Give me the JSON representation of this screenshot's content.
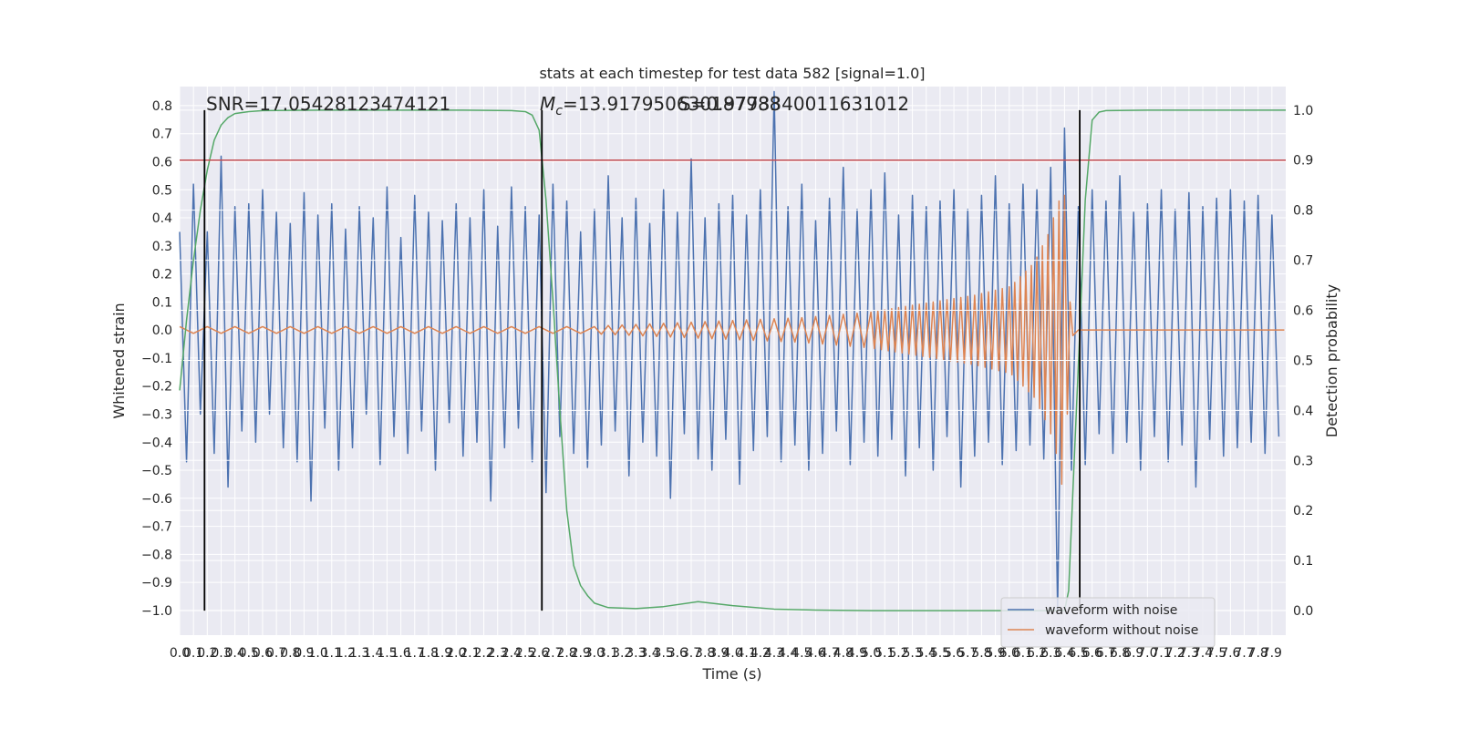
{
  "chart_data": {
    "type": "line",
    "title": "stats at each timestep for test data 582 [signal=1.0]",
    "xlabel": "Time (s)",
    "ylabel": "Whitened strain",
    "y2label": "Detection probability",
    "xlim": [
      0,
      8
    ],
    "ylim": [
      -1.088,
      0.868
    ],
    "y2lim": [
      -0.049,
      1.047
    ],
    "grid": true,
    "legend": "lower right",
    "xticks": [
      {
        "value": 0,
        "label": "0.0"
      },
      0.1,
      0.2,
      0.3,
      0.4,
      0.5,
      0.6,
      0.7,
      0.8,
      0.9,
      {
        "value": 1,
        "label": "1.0"
      },
      1.1,
      1.2,
      1.3,
      1.4,
      1.5,
      1.6,
      1.7,
      1.8,
      1.9,
      {
        "value": 2,
        "label": "2.0"
      },
      2.1,
      2.2,
      2.3,
      2.4,
      2.5,
      2.6,
      2.7,
      2.8,
      2.9,
      {
        "value": 3,
        "label": "3.0"
      },
      3.1,
      3.2,
      3.3,
      3.4,
      3.5,
      3.6,
      3.7,
      3.8,
      3.9,
      {
        "value": 4,
        "label": "4.0"
      },
      4.1,
      4.2,
      4.3,
      4.4,
      4.5,
      4.6,
      4.7,
      4.8,
      4.9,
      {
        "value": 5,
        "label": "5.0"
      },
      5.1,
      5.2,
      5.3,
      5.4,
      5.5,
      5.6,
      5.7,
      5.8,
      5.9,
      {
        "value": 6,
        "label": "6.0"
      },
      6.1,
      6.2,
      6.3,
      6.4,
      6.5,
      6.6,
      6.7,
      6.8,
      6.9,
      {
        "value": 7,
        "label": "7.0"
      },
      7.1,
      7.2,
      7.3,
      7.4,
      7.5,
      7.6,
      7.7,
      7.8,
      7.9
    ],
    "yticks": [
      0.8,
      0.7,
      0.6,
      0.5,
      0.4,
      0.3,
      0.2,
      0.1,
      {
        "value": 0,
        "label": "0.0"
      },
      {
        "value": -0.1,
        "label": "−0.1"
      },
      {
        "value": -0.2,
        "label": "−0.2"
      },
      {
        "value": -0.3,
        "label": "−0.3"
      },
      {
        "value": -0.4,
        "label": "−0.4"
      },
      {
        "value": -0.5,
        "label": "−0.5"
      },
      {
        "value": -0.6,
        "label": "−0.6"
      },
      {
        "value": -0.7,
        "label": "−0.7"
      },
      {
        "value": -0.8,
        "label": "−0.8"
      },
      {
        "value": -0.9,
        "label": "−0.9"
      },
      {
        "value": -1,
        "label": "−1.0"
      }
    ],
    "y2ticks": [
      {
        "value": 0,
        "label": "0.0"
      },
      0.1,
      0.2,
      0.3,
      0.4,
      0.5,
      0.6,
      0.7,
      0.8,
      0.9,
      {
        "value": 1,
        "label": "1.0"
      }
    ],
    "series": [
      {
        "name": "waveform with noise",
        "color": "#4c72b0",
        "x": [
          0,
          0.05,
          0.1,
          0.15,
          0.2,
          0.25,
          0.3,
          0.35,
          0.4,
          0.45,
          0.5,
          0.55,
          0.6,
          0.65,
          0.7,
          0.75,
          0.8,
          0.85,
          0.9,
          0.95,
          1,
          1.05,
          1.1,
          1.15,
          1.2,
          1.25,
          1.3,
          1.35,
          1.4,
          1.45,
          1.5,
          1.55,
          1.6,
          1.65,
          1.7,
          1.75,
          1.8,
          1.85,
          1.9,
          1.95,
          2,
          2.05,
          2.1,
          2.15,
          2.2,
          2.25,
          2.3,
          2.35,
          2.4,
          2.45,
          2.5,
          2.55,
          2.6,
          2.65,
          2.7,
          2.75,
          2.8,
          2.85,
          2.9,
          2.95,
          3,
          3.05,
          3.1,
          3.15,
          3.2,
          3.25,
          3.3,
          3.35,
          3.4,
          3.45,
          3.5,
          3.55,
          3.6,
          3.65,
          3.7,
          3.75,
          3.8,
          3.85,
          3.9,
          3.95,
          4,
          4.05,
          4.1,
          4.15,
          4.2,
          4.25,
          4.3,
          4.35,
          4.4,
          4.45,
          4.5,
          4.55,
          4.6,
          4.65,
          4.7,
          4.75,
          4.8,
          4.85,
          4.9,
          4.95,
          5,
          5.05,
          5.1,
          5.15,
          5.2,
          5.25,
          5.3,
          5.35,
          5.4,
          5.45,
          5.5,
          5.55,
          5.6,
          5.65,
          5.7,
          5.75,
          5.8,
          5.85,
          5.9,
          5.95,
          6,
          6.05,
          6.1,
          6.15,
          6.2,
          6.25,
          6.3,
          6.35,
          6.4,
          6.45,
          6.5,
          6.55,
          6.6,
          6.65,
          6.7,
          6.75,
          6.8,
          6.85,
          6.9,
          6.95,
          7,
          7.05,
          7.1,
          7.15,
          7.2,
          7.25,
          7.3,
          7.35,
          7.4,
          7.45,
          7.5,
          7.55,
          7.6,
          7.65,
          7.7,
          7.75,
          7.8,
          7.85,
          7.9,
          7.95
        ],
        "values": [
          0.35,
          -0.47,
          0.52,
          -0.3,
          0.35,
          -0.44,
          0.62,
          -0.56,
          0.44,
          -0.36,
          0.45,
          -0.4,
          0.5,
          -0.3,
          0.42,
          -0.42,
          0.38,
          -0.47,
          0.49,
          -0.61,
          0.41,
          -0.35,
          0.45,
          -0.5,
          0.36,
          -0.42,
          0.44,
          -0.3,
          0.4,
          -0.48,
          0.51,
          -0.38,
          0.33,
          -0.44,
          0.48,
          -0.36,
          0.42,
          -0.5,
          0.39,
          -0.33,
          0.45,
          -0.45,
          0.4,
          -0.4,
          0.5,
          -0.61,
          0.37,
          -0.42,
          0.51,
          -0.35,
          0.44,
          -0.47,
          0.41,
          -0.58,
          0.52,
          -0.38,
          0.46,
          -0.44,
          0.35,
          -0.49,
          0.43,
          -0.41,
          0.55,
          -0.36,
          0.4,
          -0.52,
          0.47,
          -0.4,
          0.38,
          -0.45,
          0.5,
          -0.6,
          0.42,
          -0.37,
          0.61,
          -0.46,
          0.4,
          -0.5,
          0.45,
          -0.39,
          0.48,
          -0.55,
          0.41,
          -0.43,
          0.5,
          -0.38,
          0.85,
          -0.47,
          0.44,
          -0.41,
          0.52,
          -0.5,
          0.39,
          -0.44,
          0.47,
          -0.36,
          0.58,
          -0.48,
          0.43,
          -0.4,
          0.5,
          -0.45,
          0.56,
          -0.39,
          0.41,
          -0.52,
          0.48,
          -0.42,
          0.44,
          -0.5,
          0.46,
          -0.38,
          0.5,
          -0.56,
          0.43,
          -0.45,
          0.48,
          -0.4,
          0.55,
          -0.48,
          0.45,
          -0.43,
          0.52,
          -0.41,
          0.5,
          -0.46,
          0.58,
          -1.0,
          0.72,
          -0.5,
          0.44,
          -0.48,
          0.5,
          -0.37,
          0.46,
          -0.44,
          0.55,
          -0.4,
          0.42,
          -0.5,
          0.45,
          -0.38,
          0.5,
          -0.47,
          0.43,
          -0.41,
          0.49,
          -0.56,
          0.44,
          -0.39,
          0.47,
          -0.45,
          0.5,
          -0.42,
          0.46,
          -0.4,
          0.48,
          -0.44,
          0.41,
          -0.38
        ]
      },
      {
        "name": "waveform without noise",
        "color": "#dd8452",
        "x": [
          0,
          0.1,
          0.2,
          0.3,
          0.4,
          0.5,
          0.6,
          0.7,
          0.8,
          0.9,
          1,
          1.1,
          1.2,
          1.3,
          1.4,
          1.5,
          1.6,
          1.7,
          1.8,
          1.9,
          2,
          2.1,
          2.2,
          2.3,
          2.4,
          2.5,
          2.6,
          2.7,
          2.8,
          2.9,
          3,
          3.05,
          3.1,
          3.15,
          3.2,
          3.25,
          3.3,
          3.35,
          3.4,
          3.45,
          3.5,
          3.55,
          3.6,
          3.65,
          3.7,
          3.75,
          3.8,
          3.85,
          3.9,
          3.95,
          4,
          4.05,
          4.1,
          4.15,
          4.2,
          4.25,
          4.3,
          4.35,
          4.4,
          4.45,
          4.5,
          4.55,
          4.6,
          4.65,
          4.7,
          4.75,
          4.8,
          4.85,
          4.9,
          4.95,
          5,
          5.025,
          5.05,
          5.075,
          5.1,
          5.125,
          5.15,
          5.175,
          5.2,
          5.225,
          5.25,
          5.275,
          5.3,
          5.325,
          5.35,
          5.375,
          5.4,
          5.425,
          5.45,
          5.475,
          5.5,
          5.525,
          5.55,
          5.575,
          5.6,
          5.625,
          5.65,
          5.675,
          5.7,
          5.725,
          5.75,
          5.775,
          5.8,
          5.825,
          5.85,
          5.875,
          5.9,
          5.925,
          5.95,
          5.975,
          6,
          6.02,
          6.04,
          6.06,
          6.08,
          6.1,
          6.12,
          6.14,
          6.16,
          6.18,
          6.2,
          6.22,
          6.24,
          6.26,
          6.28,
          6.3,
          6.32,
          6.34,
          6.36,
          6.38,
          6.4,
          6.42,
          6.44,
          6.46,
          6.5,
          7.99
        ],
        "values": [
          0.012,
          -0.012,
          0.012,
          -0.012,
          0.012,
          -0.012,
          0.012,
          -0.012,
          0.012,
          -0.012,
          0.012,
          -0.012,
          0.012,
          -0.012,
          0.012,
          -0.012,
          0.012,
          -0.012,
          0.012,
          -0.012,
          0.012,
          -0.012,
          0.012,
          -0.012,
          0.012,
          -0.012,
          0.012,
          -0.012,
          0.012,
          -0.012,
          0.012,
          -0.015,
          0.016,
          -0.017,
          0.018,
          -0.019,
          0.02,
          -0.021,
          0.022,
          -0.023,
          0.024,
          -0.025,
          0.026,
          -0.027,
          0.028,
          -0.029,
          0.03,
          -0.031,
          0.032,
          -0.033,
          0.034,
          -0.035,
          0.036,
          -0.037,
          0.038,
          -0.039,
          0.04,
          -0.041,
          0.042,
          -0.043,
          0.044,
          -0.046,
          0.048,
          -0.05,
          0.052,
          -0.054,
          0.056,
          -0.058,
          0.06,
          -0.062,
          0.064,
          -0.066,
          0.068,
          -0.07,
          0.072,
          -0.074,
          0.076,
          -0.078,
          0.08,
          -0.082,
          0.084,
          -0.086,
          0.088,
          -0.09,
          0.092,
          -0.094,
          0.096,
          -0.098,
          0.1,
          -0.102,
          0.104,
          -0.106,
          0.108,
          -0.11,
          0.112,
          -0.114,
          0.116,
          -0.118,
          0.12,
          -0.122,
          0.124,
          -0.127,
          0.13,
          -0.133,
          0.136,
          -0.139,
          0.142,
          -0.145,
          0.148,
          -0.151,
          0.154,
          -0.16,
          0.17,
          -0.18,
          0.19,
          -0.2,
          0.21,
          -0.22,
          0.23,
          -0.24,
          0.26,
          -0.28,
          0.3,
          -0.32,
          0.34,
          -0.37,
          0.4,
          -0.44,
          0.46,
          -0.55,
          0.48,
          -0.3,
          0.1,
          -0.02,
          0,
          0
        ]
      }
    ],
    "probability": {
      "axis": "y2",
      "color": "#55a868",
      "x": [
        0,
        0.05,
        0.1,
        0.15,
        0.2,
        0.25,
        0.3,
        0.35,
        0.4,
        0.5,
        0.6,
        1,
        1.5,
        2,
        2.4,
        2.5,
        2.55,
        2.6,
        2.65,
        2.7,
        2.75,
        2.8,
        2.85,
        2.9,
        2.95,
        3,
        3.1,
        3.3,
        3.5,
        3.75,
        4,
        4.3,
        4.6,
        5,
        6,
        6.4,
        6.43,
        6.47,
        6.5,
        6.55,
        6.6,
        6.65,
        6.7,
        7,
        8
      ],
      "values": [
        0.44,
        0.58,
        0.7,
        0.8,
        0.88,
        0.94,
        0.97,
        0.985,
        0.993,
        0.997,
        0.999,
        1,
        1,
        1,
        0.999,
        0.997,
        0.99,
        0.96,
        0.82,
        0.62,
        0.4,
        0.2,
        0.09,
        0.05,
        0.03,
        0.015,
        0.006,
        0.004,
        0.008,
        0.018,
        0.01,
        0.003,
        0.001,
        0,
        0,
        0,
        0.04,
        0.3,
        0.49,
        0.82,
        0.98,
        0.996,
        0.999,
        1,
        1
      ]
    },
    "threshold": {
      "value": 0.9,
      "axis": "y2",
      "color": "#c44e52"
    },
    "vlines": {
      "x": [
        0.18,
        2.62,
        6.51
      ],
      "ymin": 0,
      "ymax": 1,
      "axis": "y2",
      "color": "#000000"
    },
    "snr_annotation": "SNR=17.05428123474121",
    "mc_annotation": {
      "symbol": "M",
      "subscript": "c",
      "text": "=13.917950630187988"
    },
    "s_annotation": "S=0.9773340011631012"
  }
}
